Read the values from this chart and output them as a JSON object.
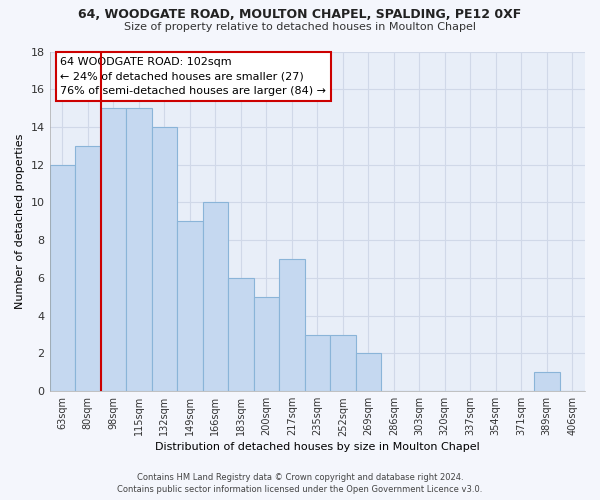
{
  "title1": "64, WOODGATE ROAD, MOULTON CHAPEL, SPALDING, PE12 0XF",
  "title2": "Size of property relative to detached houses in Moulton Chapel",
  "xlabel": "Distribution of detached houses by size in Moulton Chapel",
  "ylabel": "Number of detached properties",
  "footer1": "Contains HM Land Registry data © Crown copyright and database right 2024.",
  "footer2": "Contains public sector information licensed under the Open Government Licence v3.0.",
  "categories": [
    "63sqm",
    "80sqm",
    "98sqm",
    "115sqm",
    "132sqm",
    "149sqm",
    "166sqm",
    "183sqm",
    "200sqm",
    "217sqm",
    "235sqm",
    "252sqm",
    "269sqm",
    "286sqm",
    "303sqm",
    "320sqm",
    "337sqm",
    "354sqm",
    "371sqm",
    "389sqm",
    "406sqm"
  ],
  "values": [
    12,
    13,
    15,
    15,
    14,
    9,
    10,
    6,
    5,
    7,
    3,
    3,
    2,
    0,
    0,
    0,
    0,
    0,
    0,
    1,
    0
  ],
  "bar_color": "#c5d8f0",
  "bar_edge_color": "#8ab4d8",
  "bg_color": "#e8eef8",
  "grid_color": "#d0d8e8",
  "fig_bg_color": "#f4f6fc",
  "annotation_vline_x": 2,
  "annotation_text1": "64 WOODGATE ROAD: 102sqm",
  "annotation_text2": "← 24% of detached houses are smaller (27)",
  "annotation_text3": "76% of semi-detached houses are larger (84) →",
  "annotation_box_color": "#ffffff",
  "annotation_border_color": "#cc0000",
  "vline_color": "#cc0000",
  "ylim": [
    0,
    18
  ],
  "yticks": [
    0,
    2,
    4,
    6,
    8,
    10,
    12,
    14,
    16,
    18
  ]
}
